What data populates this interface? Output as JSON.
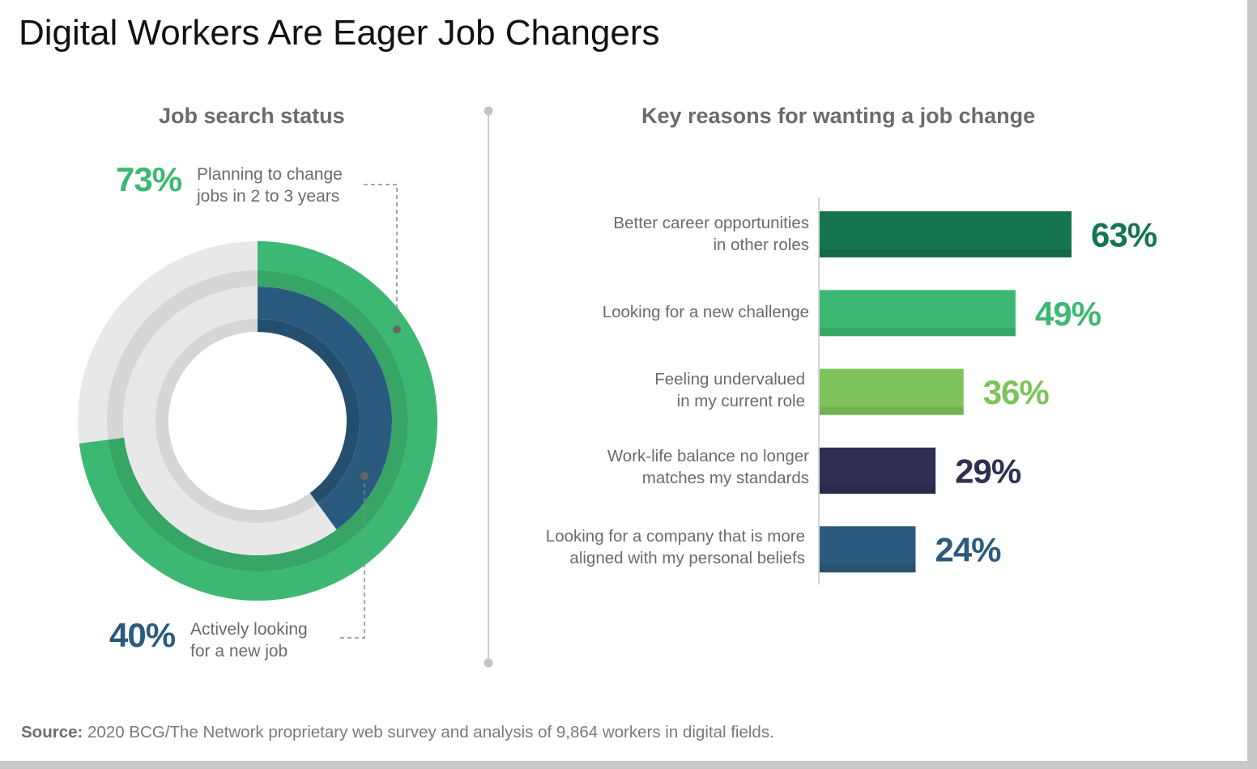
{
  "title": "Digital Workers Are Eager Job Changers",
  "source": {
    "label": "Source:",
    "text": "2020 BCG/The Network proprietary web survey and analysis of 9,864 workers in digital fields."
  },
  "chart_data": [
    {
      "type": "donut",
      "title": "Job search status",
      "series": [
        {
          "name": "Planning to change jobs in 2 to 3 years",
          "value": 73,
          "label": "73%",
          "desc_lines": [
            "Planning to change",
            "jobs in 2 to 3 years"
          ],
          "color": "#3db872"
        },
        {
          "name": "Actively looking for a new job",
          "value": 40,
          "label": "40%",
          "desc_lines": [
            "Actively looking",
            "for a new job"
          ],
          "color": "#2a5b7e"
        }
      ],
      "max": 100
    },
    {
      "type": "bar",
      "orientation": "horizontal",
      "title": "Key reasons for wanting a job change",
      "categories": [
        [
          "Better career opportunities",
          "in other roles"
        ],
        [
          "Looking for a new challenge"
        ],
        [
          "Feeling undervalued",
          "in my current role"
        ],
        [
          "Work-life balance no longer",
          "matches my standards"
        ],
        [
          "Looking for a company that is more",
          "aligned with my personal beliefs"
        ]
      ],
      "values": [
        63,
        49,
        36,
        29,
        24
      ],
      "value_labels": [
        "63%",
        "49%",
        "36%",
        "29%",
        "24%"
      ],
      "colors": [
        "#15754f",
        "#3db872",
        "#7dc35a",
        "#2f2f53",
        "#2a5b7e"
      ],
      "xlim": [
        0,
        100
      ]
    }
  ]
}
